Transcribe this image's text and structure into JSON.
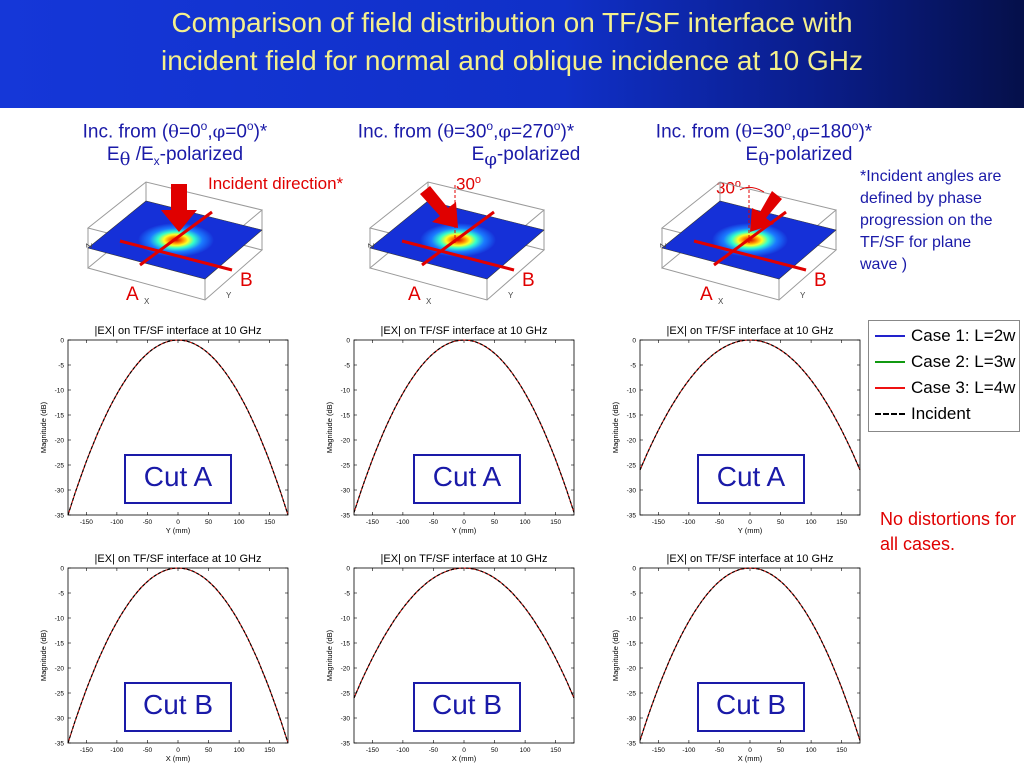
{
  "title_line1": "Comparison of field distribution on TF/SF interface with",
  "title_line2": "incident field for normal and oblique incidence at 10 GHz",
  "columns": [
    {
      "inc_prefix": "Inc. from (",
      "theta": "θ",
      "theta_val": "=0",
      "sup1": "o",
      "comma": ",",
      "phi": "φ",
      "phi_val": "=0",
      "sup2": "o",
      "suffix": ")*",
      "pol_a": "E",
      "pol_a_sub": "θ",
      "pol_mid": " /E",
      "pol_b_sub": "x",
      "pol_end": "-polarized"
    },
    {
      "inc_prefix": "Inc. from (",
      "theta": "θ",
      "theta_val": "=30",
      "sup1": "o",
      "comma": ",",
      "phi": "φ",
      "phi_val": "=270",
      "sup2": "o",
      "suffix": ")*",
      "pol_a": "E",
      "pol_a_sub": "φ",
      "pol_end": "-polarized"
    },
    {
      "inc_prefix": "Inc. from (",
      "theta": "θ",
      "theta_val": "=30",
      "sup1": "o",
      "comma": ",",
      "phi": "φ",
      "phi_val": "=180",
      "sup2": "o",
      "suffix": ")*",
      "pol_a": "E",
      "pol_a_sub": "θ",
      "pol_end": "-polarized"
    }
  ],
  "incident_direction_label": "Incident direction*",
  "angle_label_1": "30",
  "angle_label_2": "30",
  "angle_sup": "o",
  "diagram_labels": {
    "A": "A",
    "B": "B",
    "axis_z": "Z",
    "axis_x": "X",
    "axis_y": "Y"
  },
  "footnote": "*Incident angles are defined by phase progression on the TF/SF for plane wave )",
  "no_distortion": "No distortions for all cases.",
  "legend": [
    {
      "label": "Case 1: L=2w",
      "color": "#2222cc",
      "style": "solid"
    },
    {
      "label": "Case 2: L=3w",
      "color": "#119911",
      "style": "solid"
    },
    {
      "label": "Case 3: L=4w",
      "color": "#ee1111",
      "style": "solid"
    },
    {
      "label": "Incident",
      "color": "#000000",
      "style": "dashed"
    }
  ],
  "chart_data": [
    {
      "type": "line",
      "title": "|EX| on TF/SF interface at 10 GHz",
      "cut_label": "Cut A",
      "xlabel": "Y (mm)",
      "ylabel": "Magnitude (dB)",
      "xlim": [
        -180,
        180
      ],
      "ylim": [
        -35,
        0
      ],
      "xticks": [
        -150,
        -100,
        -50,
        0,
        50,
        100,
        150
      ],
      "yticks": [
        0,
        -5,
        -10,
        -15,
        -20,
        -25,
        -30,
        -35
      ],
      "series": [
        {
          "name": "Case 1: L=2w",
          "x": [
            -180,
            -120,
            -60,
            0,
            60,
            120,
            180
          ],
          "y": [
            -35,
            -15.6,
            -3.9,
            0,
            -3.9,
            -15.6,
            -35
          ]
        },
        {
          "name": "Case 2: L=3w",
          "x": [
            -180,
            -120,
            -60,
            0,
            60,
            120,
            180
          ],
          "y": [
            -35,
            -15.6,
            -3.9,
            0,
            -3.9,
            -15.6,
            -35
          ]
        },
        {
          "name": "Case 3: L=4w",
          "x": [
            -180,
            -120,
            -60,
            0,
            60,
            120,
            180
          ],
          "y": [
            -35,
            -15.6,
            -3.9,
            0,
            -3.9,
            -15.6,
            -35
          ]
        },
        {
          "name": "Incident",
          "x": [
            -180,
            -120,
            -60,
            0,
            60,
            120,
            180
          ],
          "y": [
            -35,
            -15.6,
            -3.9,
            0,
            -3.9,
            -15.6,
            -35
          ]
        }
      ]
    },
    {
      "type": "line",
      "title": "|EX| on TF/SF interface at 10 GHz",
      "cut_label": "Cut A",
      "xlabel": "Y (mm)",
      "ylabel": "Magnitude (dB)",
      "xlim": [
        -180,
        180
      ],
      "ylim": [
        -35,
        0
      ],
      "xticks": [
        -150,
        -100,
        -50,
        0,
        50,
        100,
        150
      ],
      "yticks": [
        0,
        -5,
        -10,
        -15,
        -20,
        -25,
        -30,
        -35
      ],
      "series": [
        {
          "name": "Case 1: L=2w",
          "x": [
            -180,
            -120,
            -60,
            0,
            60,
            120,
            180
          ],
          "y": [
            -34.5,
            -15.3,
            -3.8,
            0,
            -3.8,
            -15.3,
            -34.5
          ]
        },
        {
          "name": "Case 2: L=3w",
          "x": [
            -180,
            -120,
            -60,
            0,
            60,
            120,
            180
          ],
          "y": [
            -34.5,
            -15.3,
            -3.8,
            0,
            -3.8,
            -15.3,
            -34.5
          ]
        },
        {
          "name": "Case 3: L=4w",
          "x": [
            -180,
            -120,
            -60,
            0,
            60,
            120,
            180
          ],
          "y": [
            -34.5,
            -15.3,
            -3.8,
            0,
            -3.8,
            -15.3,
            -34.5
          ]
        },
        {
          "name": "Incident",
          "x": [
            -180,
            -120,
            -60,
            0,
            60,
            120,
            180
          ],
          "y": [
            -34.5,
            -15.3,
            -3.8,
            0,
            -3.8,
            -15.3,
            -34.5
          ]
        }
      ]
    },
    {
      "type": "line",
      "title": "|EX| on TF/SF interface at 10 GHz",
      "cut_label": "Cut A",
      "xlabel": "Y (mm)",
      "ylabel": "Magnitude (dB)",
      "xlim": [
        -180,
        180
      ],
      "ylim": [
        -35,
        0
      ],
      "xticks": [
        -150,
        -100,
        -50,
        0,
        50,
        100,
        150
      ],
      "yticks": [
        0,
        -5,
        -10,
        -15,
        -20,
        -25,
        -30,
        -35
      ],
      "series": [
        {
          "name": "Case 1: L=2w",
          "x": [
            -180,
            -120,
            -60,
            0,
            60,
            120,
            180
          ],
          "y": [
            -26,
            -11.5,
            -2.9,
            0,
            -2.9,
            -11.5,
            -26
          ]
        },
        {
          "name": "Case 2: L=3w",
          "x": [
            -180,
            -120,
            -60,
            0,
            60,
            120,
            180
          ],
          "y": [
            -26,
            -11.5,
            -2.9,
            0,
            -2.9,
            -11.5,
            -26
          ]
        },
        {
          "name": "Case 3: L=4w",
          "x": [
            -180,
            -120,
            -60,
            0,
            60,
            120,
            180
          ],
          "y": [
            -26,
            -11.5,
            -2.9,
            0,
            -2.9,
            -11.5,
            -26
          ]
        },
        {
          "name": "Incident",
          "x": [
            -180,
            -120,
            -60,
            0,
            60,
            120,
            180
          ],
          "y": [
            -26,
            -11.5,
            -2.9,
            0,
            -2.9,
            -11.5,
            -26
          ]
        }
      ]
    },
    {
      "type": "line",
      "title": "|EX| on TF/SF interface at 10 GHz",
      "cut_label": "Cut B",
      "xlabel": "X (mm)",
      "ylabel": "Magnitude (dB)",
      "xlim": [
        -180,
        180
      ],
      "ylim": [
        -35,
        0
      ],
      "xticks": [
        -150,
        -100,
        -50,
        0,
        50,
        100,
        150
      ],
      "yticks": [
        0,
        -5,
        -10,
        -15,
        -20,
        -25,
        -30,
        -35
      ],
      "series": [
        {
          "name": "Case 1: L=2w",
          "x": [
            -180,
            -120,
            -60,
            0,
            60,
            120,
            180
          ],
          "y": [
            -35,
            -15.6,
            -3.9,
            0,
            -3.9,
            -15.6,
            -35
          ]
        },
        {
          "name": "Case 2: L=3w",
          "x": [
            -180,
            -120,
            -60,
            0,
            60,
            120,
            180
          ],
          "y": [
            -35,
            -15.6,
            -3.9,
            0,
            -3.9,
            -15.6,
            -35
          ]
        },
        {
          "name": "Case 3: L=4w",
          "x": [
            -180,
            -120,
            -60,
            0,
            60,
            120,
            180
          ],
          "y": [
            -35,
            -15.6,
            -3.9,
            0,
            -3.9,
            -15.6,
            -35
          ]
        },
        {
          "name": "Incident",
          "x": [
            -180,
            -120,
            -60,
            0,
            60,
            120,
            180
          ],
          "y": [
            -35,
            -15.6,
            -3.9,
            0,
            -3.9,
            -15.6,
            -35
          ]
        }
      ]
    },
    {
      "type": "line",
      "title": "|EX| on TF/SF interface at 10 GHz",
      "cut_label": "Cut B",
      "xlabel": "X (mm)",
      "ylabel": "Magnitude (dB)",
      "xlim": [
        -180,
        180
      ],
      "ylim": [
        -35,
        0
      ],
      "xticks": [
        -150,
        -100,
        -50,
        0,
        50,
        100,
        150
      ],
      "yticks": [
        0,
        -5,
        -10,
        -15,
        -20,
        -25,
        -30,
        -35
      ],
      "series": [
        {
          "name": "Case 1: L=2w",
          "x": [
            -180,
            -120,
            -60,
            0,
            60,
            120,
            180
          ],
          "y": [
            -26,
            -11.5,
            -2.9,
            0,
            -2.9,
            -11.5,
            -26
          ]
        },
        {
          "name": "Case 2: L=3w",
          "x": [
            -180,
            -120,
            -60,
            0,
            60,
            120,
            180
          ],
          "y": [
            -26,
            -11.5,
            -2.9,
            0,
            -2.9,
            -11.5,
            -26
          ]
        },
        {
          "name": "Case 3: L=4w",
          "x": [
            -180,
            -120,
            -60,
            0,
            60,
            120,
            180
          ],
          "y": [
            -26,
            -11.5,
            -2.9,
            0,
            -2.9,
            -11.5,
            -26
          ]
        },
        {
          "name": "Incident",
          "x": [
            -180,
            -120,
            -60,
            0,
            60,
            120,
            180
          ],
          "y": [
            -26,
            -11.5,
            -2.9,
            0,
            -2.9,
            -11.5,
            -26
          ]
        }
      ]
    },
    {
      "type": "line",
      "title": "|EX| on TF/SF interface at 10 GHz",
      "cut_label": "Cut B",
      "xlabel": "X (mm)",
      "ylabel": "Magnitude (dB)",
      "xlim": [
        -180,
        180
      ],
      "ylim": [
        -35,
        0
      ],
      "xticks": [
        -150,
        -100,
        -50,
        0,
        50,
        100,
        150
      ],
      "yticks": [
        0,
        -5,
        -10,
        -15,
        -20,
        -25,
        -30,
        -35
      ],
      "series": [
        {
          "name": "Case 1: L=2w",
          "x": [
            -180,
            -120,
            -60,
            0,
            60,
            120,
            180
          ],
          "y": [
            -34.5,
            -15.3,
            -3.8,
            0,
            -3.8,
            -15.3,
            -34.5
          ]
        },
        {
          "name": "Case 2: L=3w",
          "x": [
            -180,
            -120,
            -60,
            0,
            60,
            120,
            180
          ],
          "y": [
            -34.5,
            -15.3,
            -3.8,
            0,
            -3.8,
            -15.3,
            -34.5
          ]
        },
        {
          "name": "Case 3: L=4w",
          "x": [
            -180,
            -120,
            -60,
            0,
            60,
            120,
            180
          ],
          "y": [
            -34.5,
            -15.3,
            -3.8,
            0,
            -3.8,
            -15.3,
            -34.5
          ]
        },
        {
          "name": "Incident",
          "x": [
            -180,
            -120,
            -60,
            0,
            60,
            120,
            180
          ],
          "y": [
            -34.5,
            -15.3,
            -3.8,
            0,
            -3.8,
            -15.3,
            -34.5
          ]
        }
      ]
    }
  ]
}
